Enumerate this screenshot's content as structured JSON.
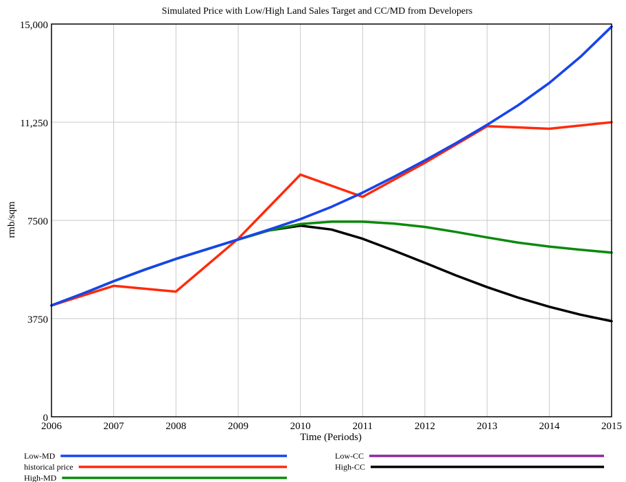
{
  "chart_data": {
    "type": "line",
    "title": "Simulated Price with Low/High Land Sales Target and CC/MD from Developers",
    "xlabel": "Time (Periods)",
    "ylabel": "rmb/sqm",
    "xlim": [
      2006,
      2015
    ],
    "ylim": [
      0,
      15000
    ],
    "x_ticks": [
      {
        "value": 2006,
        "label": "2006"
      },
      {
        "value": 2007,
        "label": "2007"
      },
      {
        "value": 2008,
        "label": "2008"
      },
      {
        "value": 2009,
        "label": "2009"
      },
      {
        "value": 2010,
        "label": "2010"
      },
      {
        "value": 2011,
        "label": "2011"
      },
      {
        "value": 2012,
        "label": "2012"
      },
      {
        "value": 2013,
        "label": "2013"
      },
      {
        "value": 2014,
        "label": "2014"
      },
      {
        "value": 2015,
        "label": "2015"
      }
    ],
    "y_ticks": [
      {
        "value": 0,
        "label": "0"
      },
      {
        "value": 3750,
        "label": "3750"
      },
      {
        "value": 7500,
        "label": "7500"
      },
      {
        "value": 11250,
        "label": "11,250"
      },
      {
        "value": 15000,
        "label": "15,000"
      }
    ],
    "grid": true,
    "legend_position": "bottom",
    "series": [
      {
        "name": "Low-CC",
        "color": "#8b2a9c",
        "legend_column": 1,
        "legend_row": 0,
        "x": [
          2006,
          2006.5,
          2007,
          2007.5,
          2008,
          2008.5,
          2009,
          2009.5,
          2010,
          2010.5,
          2011,
          2011.5,
          2012,
          2012.5,
          2013,
          2013.5,
          2014,
          2014.5,
          2015
        ],
        "values": [
          4250,
          4700,
          5180,
          5620,
          6030,
          6400,
          6770,
          7150,
          7550,
          8020,
          8560,
          9160,
          9790,
          10450,
          11150,
          11900,
          12750,
          13750,
          14900
        ]
      },
      {
        "name": "High-CC",
        "color": "#000000",
        "legend_column": 1,
        "legend_row": 1,
        "x": [
          2006,
          2006.5,
          2007,
          2007.5,
          2008,
          2008.5,
          2009,
          2009.5,
          2010,
          2010.5,
          2011,
          2011.5,
          2012,
          2012.5,
          2013,
          2013.5,
          2014,
          2014.5,
          2015
        ],
        "values": [
          4250,
          4700,
          5180,
          5620,
          6030,
          6400,
          6770,
          7120,
          7300,
          7150,
          6800,
          6350,
          5880,
          5400,
          4950,
          4550,
          4200,
          3900,
          3650
        ]
      },
      {
        "name": "High-MD",
        "color": "#0b8a0b",
        "legend_column": 0,
        "legend_row": 2,
        "x": [
          2006,
          2006.5,
          2007,
          2007.5,
          2008,
          2008.5,
          2009,
          2009.5,
          2010,
          2010.5,
          2011,
          2011.5,
          2012,
          2012.5,
          2013,
          2013.5,
          2014,
          2014.5,
          2015
        ],
        "values": [
          4250,
          4700,
          5180,
          5620,
          6030,
          6400,
          6770,
          7120,
          7360,
          7450,
          7450,
          7380,
          7250,
          7060,
          6850,
          6650,
          6500,
          6380,
          6270
        ]
      },
      {
        "name": "historical price",
        "color": "#ff2a0a",
        "legend_column": 0,
        "legend_row": 1,
        "x": [
          2006,
          2007,
          2008,
          2009,
          2010,
          2011,
          2012,
          2013,
          2014,
          2015
        ],
        "values": [
          4250,
          5000,
          4780,
          6800,
          9250,
          8400,
          9700,
          11100,
          11000,
          11250
        ]
      },
      {
        "name": "Low-MD",
        "color": "#1446ee",
        "legend_column": 0,
        "legend_row": 0,
        "x": [
          2006,
          2006.5,
          2007,
          2007.5,
          2008,
          2008.5,
          2009,
          2009.5,
          2010,
          2010.5,
          2011,
          2011.5,
          2012,
          2012.5,
          2013,
          2013.5,
          2014,
          2014.5,
          2015
        ],
        "values": [
          4250,
          4700,
          5180,
          5620,
          6030,
          6400,
          6770,
          7150,
          7550,
          8020,
          8560,
          9160,
          9790,
          10450,
          11150,
          11900,
          12750,
          13750,
          14900
        ]
      }
    ]
  }
}
